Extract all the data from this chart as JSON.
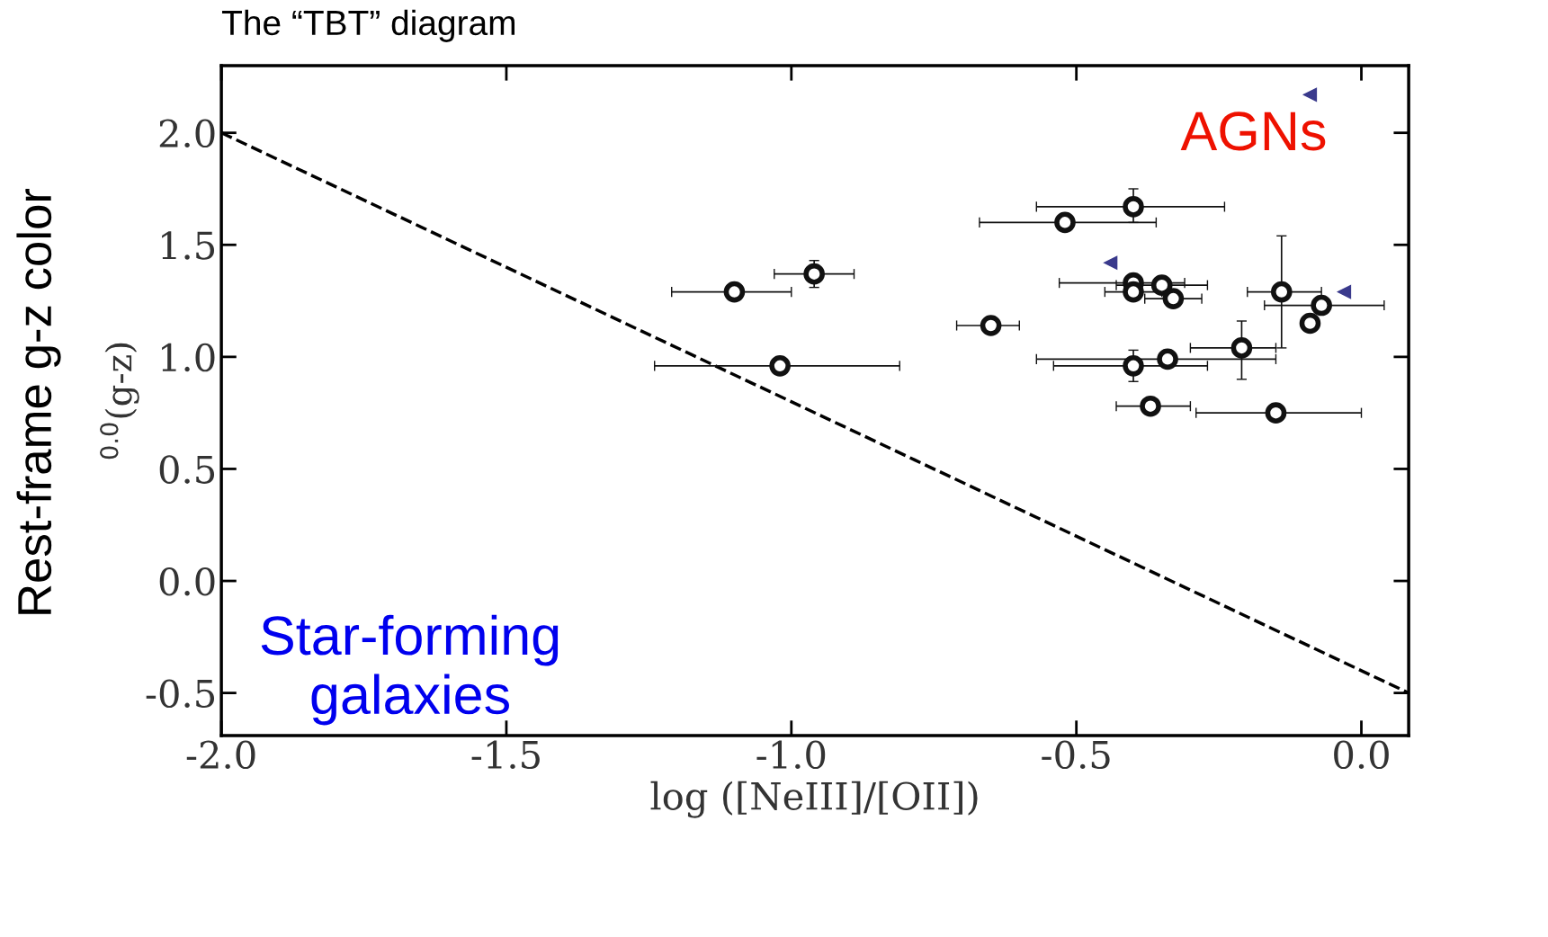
{
  "chart_data": {
    "type": "scatter",
    "title": "The “TBT” diagram",
    "xlabel": "log ([NeIII]/[OII])",
    "ylabel": "$^{0.0}$(g-z)",
    "annotations": [
      "Rest-frame g-z color",
      "AGNs",
      "Star-forming galaxies"
    ],
    "xlim": [
      -2.0,
      0.083
    ],
    "ylim": [
      -0.69,
      2.3
    ],
    "xticks": [
      {
        "value": -2.0,
        "label": "-2.0"
      },
      {
        "value": -1.5,
        "label": "-1.5"
      },
      {
        "value": -1.0,
        "label": "-1.0"
      },
      {
        "value": -0.5,
        "label": "-0.5"
      },
      {
        "value": 0.0,
        "label": "0.0"
      }
    ],
    "yticks": [
      {
        "value": -0.5,
        "label": "-0.5"
      },
      {
        "value": 0.0,
        "label": "0.0"
      },
      {
        "value": 0.5,
        "label": "0.5"
      },
      {
        "value": 1.0,
        "label": "1.0"
      },
      {
        "value": 1.5,
        "label": "1.5"
      },
      {
        "value": 2.0,
        "label": "2.0"
      }
    ],
    "grid": false,
    "legend": false,
    "series": [
      {
        "color": "#111111",
        "marker": "circle",
        "x": [
          -1.1,
          -0.96,
          -1.02,
          -0.65,
          -0.52,
          -0.4,
          -0.4,
          -0.4,
          -0.35,
          -0.33,
          -0.4,
          -0.34,
          -0.21,
          -0.37,
          -0.15,
          -0.14,
          -0.09,
          -0.07
        ],
        "values": [
          1.29,
          1.37,
          0.96,
          1.14,
          1.6,
          1.67,
          1.33,
          1.29,
          1.32,
          1.26,
          0.96,
          0.99,
          1.04,
          0.78,
          0.75,
          1.29,
          1.15,
          1.23
        ],
        "xerrors": [
          [
            -1.21,
            -1.0
          ],
          [
            -1.03,
            -0.89
          ],
          [
            -1.24,
            -0.81
          ],
          [
            -0.71,
            -0.6
          ],
          [
            -0.67,
            -0.36
          ],
          [
            -0.57,
            -0.24
          ],
          [
            -0.53,
            -0.31
          ],
          [
            -0.45,
            -0.35
          ],
          [
            -0.43,
            -0.27
          ],
          [
            -0.38,
            -0.28
          ],
          [
            -0.54,
            -0.27
          ],
          [
            -0.57,
            -0.15
          ],
          [
            -0.3,
            -0.15
          ],
          [
            -0.43,
            -0.3
          ],
          [
            -0.29,
            0.0
          ],
          [
            -0.2,
            -0.07
          ],
          null,
          [
            -0.17,
            0.04
          ]
        ],
        "errors": [
          null,
          [
            1.31,
            1.43
          ],
          null,
          null,
          null,
          [
            1.6,
            1.75
          ],
          null,
          null,
          null,
          null,
          [
            0.89,
            1.03
          ],
          null,
          [
            0.9,
            1.16
          ],
          null,
          null,
          [
            1.04,
            1.54
          ],
          null,
          null
        ]
      },
      {
        "type": "scatter",
        "color": "#3a3a8c",
        "marker": "triangle",
        "x": [
          -0.09,
          -0.44,
          -0.03
        ],
        "values": [
          2.17,
          1.42,
          1.29
        ]
      },
      {
        "type": "line",
        "color": "#000000",
        "line_style": "dashed",
        "marker": "none",
        "x": [
          -2.0,
          0.083
        ],
        "values": [
          2.0,
          -0.5
        ]
      }
    ]
  }
}
